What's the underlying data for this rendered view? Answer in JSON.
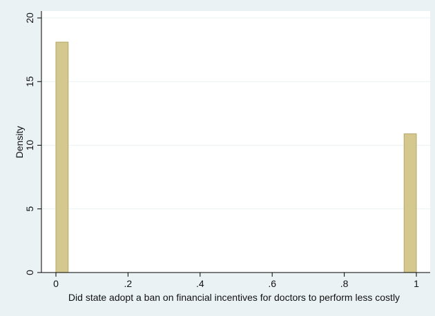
{
  "chart_data": {
    "type": "bar",
    "xlabel": "Did state adopt a ban on financial incentives for doctors to perform less costly",
    "ylabel": "Density",
    "xlim": [
      0,
      1
    ],
    "ylim": [
      0,
      20
    ],
    "x_ticks": [
      {
        "value": 0,
        "label": "0"
      },
      {
        "value": 0.2,
        "label": ".2"
      },
      {
        "value": 0.4,
        "label": ".4"
      },
      {
        "value": 0.6,
        "label": ".6"
      },
      {
        "value": 0.8,
        "label": ".8"
      },
      {
        "value": 1,
        "label": "1"
      }
    ],
    "y_ticks": [
      {
        "value": 0,
        "label": "0"
      },
      {
        "value": 5,
        "label": "5"
      },
      {
        "value": 10,
        "label": "10"
      },
      {
        "value": 15,
        "label": "15"
      },
      {
        "value": 20,
        "label": "20"
      }
    ],
    "bars": [
      {
        "x_start": 0,
        "x_end": 0.034,
        "value": 18.1
      },
      {
        "x_start": 0.966,
        "x_end": 1,
        "value": 10.9
      }
    ],
    "grid": true,
    "colors": {
      "bar_fill": "#d4c88e",
      "bar_stroke": "#b3a66a",
      "plot_background": "#ffffff",
      "outer_background": "#eaf2f3",
      "grid": "#eaf2f3"
    }
  }
}
